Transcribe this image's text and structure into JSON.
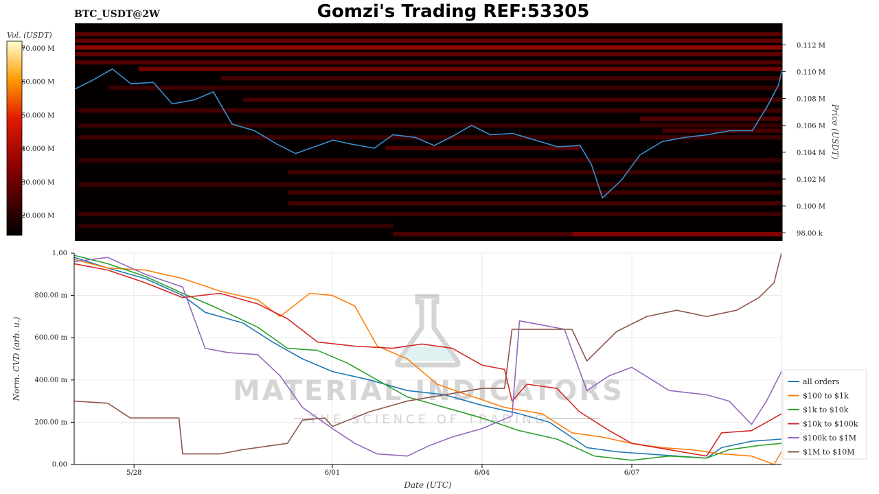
{
  "header": {
    "symbol": "BTC_USDT@2W",
    "title": "Gomzi's Trading REF:53305"
  },
  "colors": {
    "heat_low": "#000000",
    "heat_mid": "#c81008",
    "heat_high": "#ffffc0",
    "price_line": "#3a8fd0",
    "series": [
      "#1f77b4",
      "#ff7f0e",
      "#2ca02c",
      "#d62728",
      "#9467bd",
      "#8c564b"
    ]
  },
  "watermark": {
    "brand": "MATERIAL INDICATORS",
    "tagline": "THE SCIENCE OF TRADING",
    "icon": "flask-icon"
  },
  "chart_data": [
    {
      "type": "heatmap",
      "title": "",
      "colorbar_label": "Vol. (USDT)",
      "colorbar_ticks": [
        "20.000 M",
        "30.000 M",
        "40.000 M",
        "50.000 M",
        "60.000 M",
        "70.000 M"
      ],
      "colorbar_values": [
        20,
        30,
        40,
        50,
        60,
        70
      ],
      "colorbar_range": [
        14,
        72
      ],
      "ylabel": "Price (USDT)",
      "y_ticks": [
        "98.00 k",
        "0.100 M",
        "0.102 M",
        "0.104 M",
        "0.106 M",
        "0.108 M",
        "0.110 M",
        "0.112 M"
      ],
      "y_tick_values": [
        98000,
        100000,
        102000,
        104000,
        106000,
        108000,
        110000,
        112000
      ],
      "ylim": [
        97400,
        113600
      ],
      "xlim_days": [
        26.55,
        36.0
      ],
      "price_anchors": [
        [
          26.55,
          108700
        ],
        [
          26.8,
          109400
        ],
        [
          27.05,
          110200
        ],
        [
          27.3,
          109100
        ],
        [
          27.6,
          109200
        ],
        [
          27.85,
          107600
        ],
        [
          28.15,
          107900
        ],
        [
          28.4,
          108500
        ],
        [
          28.65,
          106100
        ],
        [
          28.95,
          105600
        ],
        [
          29.25,
          104600
        ],
        [
          29.5,
          103900
        ],
        [
          29.75,
          104400
        ],
        [
          30.0,
          104900
        ],
        [
          30.25,
          104600
        ],
        [
          30.55,
          104300
        ],
        [
          30.8,
          105300
        ],
        [
          31.1,
          105100
        ],
        [
          31.35,
          104500
        ],
        [
          31.6,
          105200
        ],
        [
          31.85,
          106000
        ],
        [
          32.1,
          105300
        ],
        [
          32.4,
          105400
        ],
        [
          32.7,
          104900
        ],
        [
          33.0,
          104400
        ],
        [
          33.3,
          104500
        ],
        [
          33.45,
          103100
        ],
        [
          33.6,
          100600
        ],
        [
          33.85,
          101900
        ],
        [
          34.1,
          103800
        ],
        [
          34.4,
          104800
        ],
        [
          34.7,
          105100
        ],
        [
          35.0,
          105300
        ],
        [
          35.3,
          105600
        ],
        [
          35.6,
          105600
        ],
        [
          35.8,
          107400
        ],
        [
          35.95,
          109000
        ],
        [
          36.0,
          110200
        ]
      ],
      "levels": [
        [
          112800,
          26.55,
          36.0,
          0.38
        ],
        [
          112300,
          26.55,
          36.0,
          0.42
        ],
        [
          111800,
          26.55,
          36.0,
          0.62
        ],
        [
          111300,
          26.55,
          36.0,
          0.4
        ],
        [
          110700,
          26.55,
          36.0,
          0.34
        ],
        [
          110200,
          27.4,
          36.0,
          0.5
        ],
        [
          109500,
          28.5,
          36.0,
          0.28
        ],
        [
          108800,
          27.0,
          36.0,
          0.22
        ],
        [
          107900,
          28.8,
          36.0,
          0.3
        ],
        [
          107100,
          26.6,
          36.0,
          0.26
        ],
        [
          106500,
          34.1,
          36.0,
          0.34
        ],
        [
          106000,
          26.6,
          36.0,
          0.22
        ],
        [
          105600,
          34.4,
          36.0,
          0.3
        ],
        [
          105100,
          26.6,
          36.0,
          0.24
        ],
        [
          104300,
          30.7,
          33.3,
          0.34
        ],
        [
          103400,
          26.6,
          36.0,
          0.2
        ],
        [
          102500,
          29.4,
          36.0,
          0.24
        ],
        [
          101600,
          26.6,
          36.0,
          0.22
        ],
        [
          101000,
          29.4,
          36.0,
          0.26
        ],
        [
          100200,
          29.4,
          36.0,
          0.28
        ],
        [
          99400,
          26.6,
          36.0,
          0.22
        ],
        [
          98500,
          26.6,
          30.8,
          0.2
        ],
        [
          97900,
          30.8,
          36.0,
          0.3
        ],
        [
          97900,
          33.2,
          36.0,
          0.5
        ]
      ]
    },
    {
      "type": "line",
      "title": "",
      "xlabel": "Date (UTC)",
      "ylabel": "Norm. CVD (arb. u.)",
      "ylim": [
        0,
        1
      ],
      "y_ticks": [
        "0.00",
        "200.00 m",
        "400.00 m",
        "600.00 m",
        "800.00 m",
        "1.00"
      ],
      "y_tick_values": [
        0,
        0.2,
        0.4,
        0.6,
        0.8,
        1.0
      ],
      "xlim_days": [
        26.55,
        36.0
      ],
      "x_ticks": [
        "5/28",
        "6/01",
        "6/04",
        "6/07"
      ],
      "x_tick_days": [
        27.35,
        30.0,
        32.0,
        34.0
      ],
      "legend_position": "right",
      "series": [
        {
          "name": "all orders",
          "points": [
            [
              26.55,
              0.98
            ],
            [
              27.0,
              0.93
            ],
            [
              27.5,
              0.88
            ],
            [
              28.0,
              0.8
            ],
            [
              28.3,
              0.72
            ],
            [
              28.8,
              0.67
            ],
            [
              29.2,
              0.58
            ],
            [
              29.6,
              0.5
            ],
            [
              30.0,
              0.44
            ],
            [
              30.5,
              0.4
            ],
            [
              31.0,
              0.35
            ],
            [
              31.5,
              0.33
            ],
            [
              32.0,
              0.28
            ],
            [
              32.5,
              0.24
            ],
            [
              32.9,
              0.2
            ],
            [
              33.4,
              0.08
            ],
            [
              33.8,
              0.06
            ],
            [
              34.2,
              0.05
            ],
            [
              34.6,
              0.04
            ],
            [
              35.0,
              0.03
            ],
            [
              35.2,
              0.08
            ],
            [
              35.6,
              0.11
            ],
            [
              36.0,
              0.12
            ]
          ]
        },
        {
          "name": "$100 to $1k",
          "points": [
            [
              26.55,
              0.97
            ],
            [
              27.0,
              0.93
            ],
            [
              27.5,
              0.92
            ],
            [
              28.0,
              0.88
            ],
            [
              28.5,
              0.82
            ],
            [
              29.0,
              0.78
            ],
            [
              29.3,
              0.7
            ],
            [
              29.7,
              0.81
            ],
            [
              30.0,
              0.8
            ],
            [
              30.3,
              0.75
            ],
            [
              30.6,
              0.56
            ],
            [
              31.0,
              0.5
            ],
            [
              31.4,
              0.38
            ],
            [
              31.8,
              0.33
            ],
            [
              32.3,
              0.27
            ],
            [
              32.8,
              0.24
            ],
            [
              33.2,
              0.15
            ],
            [
              33.6,
              0.13
            ],
            [
              34.0,
              0.1
            ],
            [
              34.4,
              0.08
            ],
            [
              34.8,
              0.07
            ],
            [
              35.2,
              0.05
            ],
            [
              35.6,
              0.04
            ],
            [
              35.9,
              0.0
            ],
            [
              36.0,
              0.06
            ]
          ]
        },
        {
          "name": "$1k to $10k",
          "points": [
            [
              26.55,
              0.99
            ],
            [
              27.0,
              0.95
            ],
            [
              27.5,
              0.89
            ],
            [
              28.0,
              0.81
            ],
            [
              28.4,
              0.75
            ],
            [
              29.0,
              0.65
            ],
            [
              29.4,
              0.55
            ],
            [
              29.8,
              0.54
            ],
            [
              30.2,
              0.48
            ],
            [
              30.6,
              0.4
            ],
            [
              31.0,
              0.32
            ],
            [
              31.5,
              0.27
            ],
            [
              32.0,
              0.22
            ],
            [
              32.5,
              0.16
            ],
            [
              33.0,
              0.12
            ],
            [
              33.5,
              0.04
            ],
            [
              34.0,
              0.02
            ],
            [
              34.5,
              0.04
            ],
            [
              35.0,
              0.03
            ],
            [
              35.3,
              0.07
            ],
            [
              35.7,
              0.09
            ],
            [
              36.0,
              0.1
            ]
          ]
        },
        {
          "name": "$10k to $100k",
          "points": [
            [
              26.55,
              0.95
            ],
            [
              27.0,
              0.92
            ],
            [
              27.5,
              0.86
            ],
            [
              28.0,
              0.79
            ],
            [
              28.5,
              0.81
            ],
            [
              29.0,
              0.76
            ],
            [
              29.4,
              0.69
            ],
            [
              29.8,
              0.58
            ],
            [
              30.3,
              0.56
            ],
            [
              30.8,
              0.55
            ],
            [
              31.2,
              0.57
            ],
            [
              31.6,
              0.55
            ],
            [
              32.0,
              0.47
            ],
            [
              32.3,
              0.45
            ],
            [
              32.4,
              0.3
            ],
            [
              32.6,
              0.38
            ],
            [
              33.0,
              0.36
            ],
            [
              33.3,
              0.25
            ],
            [
              33.7,
              0.16
            ],
            [
              34.0,
              0.1
            ],
            [
              34.5,
              0.07
            ],
            [
              35.0,
              0.04
            ],
            [
              35.2,
              0.15
            ],
            [
              35.6,
              0.16
            ],
            [
              35.8,
              0.2
            ],
            [
              36.0,
              0.24
            ]
          ]
        },
        {
          "name": "$100k to $1M",
          "points": [
            [
              26.55,
              0.96
            ],
            [
              27.0,
              0.98
            ],
            [
              27.5,
              0.9
            ],
            [
              28.0,
              0.84
            ],
            [
              28.3,
              0.55
            ],
            [
              28.6,
              0.53
            ],
            [
              29.0,
              0.52
            ],
            [
              29.3,
              0.42
            ],
            [
              29.6,
              0.27
            ],
            [
              30.0,
              0.17
            ],
            [
              30.3,
              0.1
            ],
            [
              30.6,
              0.05
            ],
            [
              31.0,
              0.04
            ],
            [
              31.3,
              0.09
            ],
            [
              31.6,
              0.13
            ],
            [
              32.0,
              0.17
            ],
            [
              32.4,
              0.23
            ],
            [
              32.5,
              0.68
            ],
            [
              32.8,
              0.66
            ],
            [
              33.1,
              0.64
            ],
            [
              33.4,
              0.35
            ],
            [
              33.7,
              0.42
            ],
            [
              34.0,
              0.46
            ],
            [
              34.5,
              0.35
            ],
            [
              35.0,
              0.33
            ],
            [
              35.3,
              0.3
            ],
            [
              35.6,
              0.19
            ],
            [
              35.8,
              0.3
            ],
            [
              36.0,
              0.44
            ]
          ]
        },
        {
          "name": "$1M to $10M",
          "points": [
            [
              26.55,
              0.3
            ],
            [
              27.0,
              0.29
            ],
            [
              27.3,
              0.22
            ],
            [
              27.95,
              0.22
            ],
            [
              28.0,
              0.05
            ],
            [
              28.5,
              0.05
            ],
            [
              28.8,
              0.07
            ],
            [
              29.4,
              0.1
            ],
            [
              29.6,
              0.21
            ],
            [
              29.9,
              0.22
            ],
            [
              30.0,
              0.18
            ],
            [
              30.5,
              0.25
            ],
            [
              31.0,
              0.3
            ],
            [
              31.5,
              0.33
            ],
            [
              32.0,
              0.36
            ],
            [
              32.3,
              0.36
            ],
            [
              32.4,
              0.64
            ],
            [
              32.8,
              0.64
            ],
            [
              33.2,
              0.64
            ],
            [
              33.4,
              0.49
            ],
            [
              33.8,
              0.63
            ],
            [
              34.2,
              0.7
            ],
            [
              34.6,
              0.73
            ],
            [
              35.0,
              0.7
            ],
            [
              35.4,
              0.73
            ],
            [
              35.7,
              0.79
            ],
            [
              35.9,
              0.86
            ],
            [
              36.0,
              1.0
            ]
          ]
        }
      ]
    }
  ]
}
